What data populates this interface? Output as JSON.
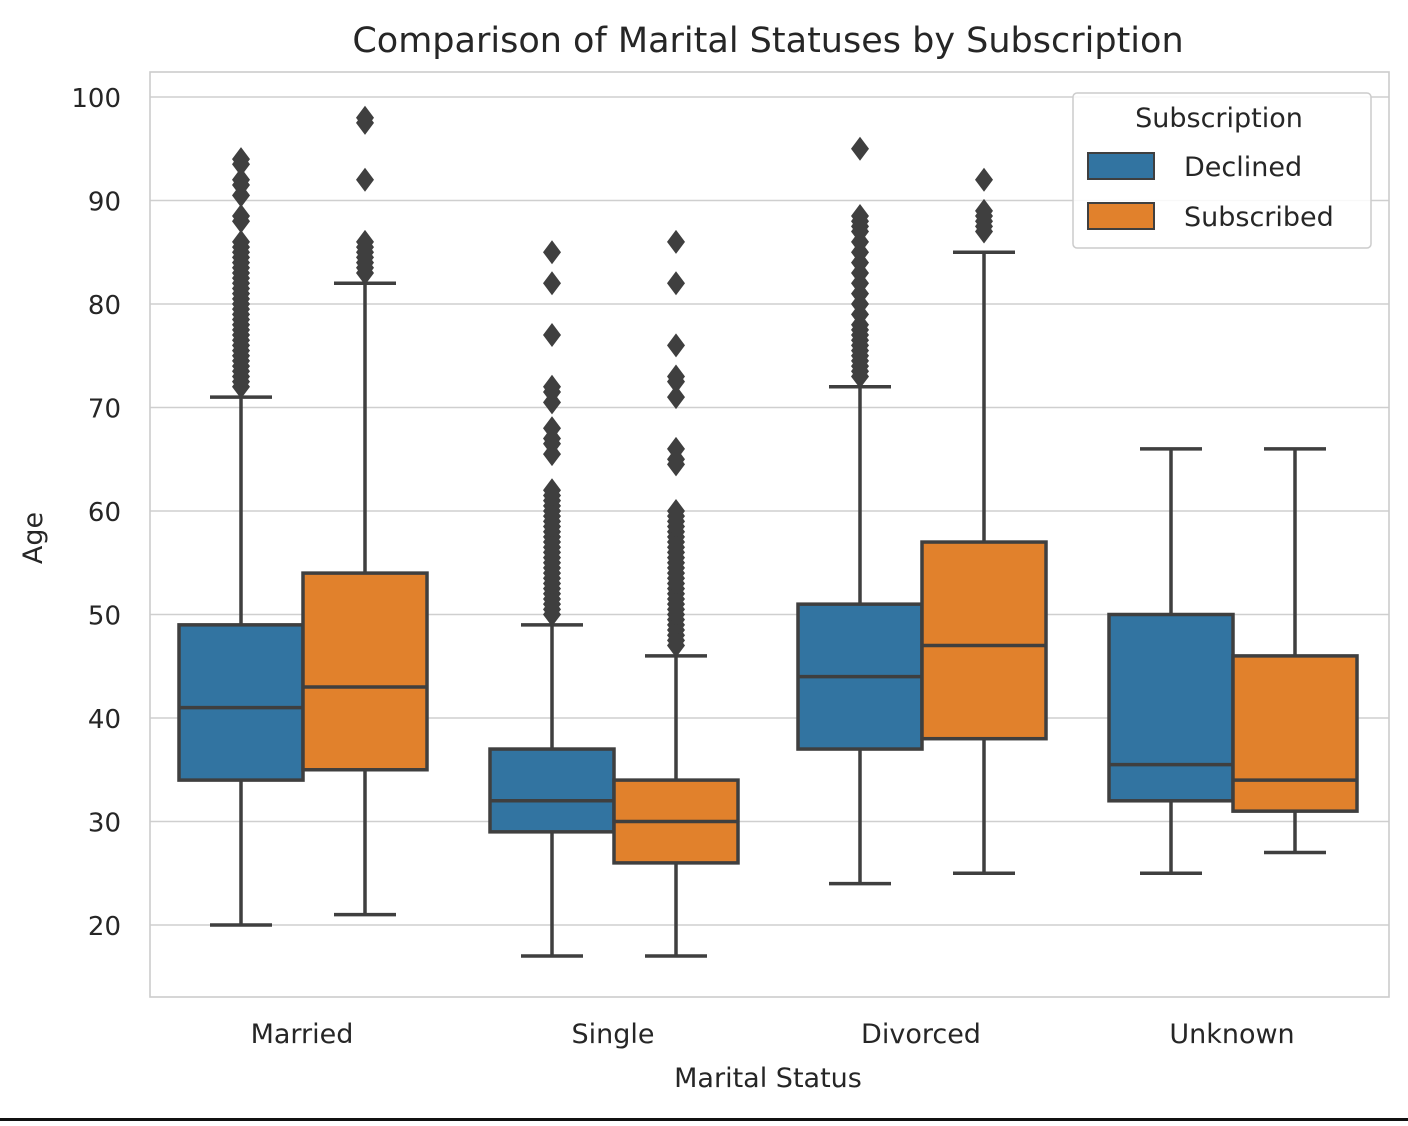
{
  "chart_data": {
    "type": "box",
    "title": "Comparison of Marital Statuses by Subscription",
    "xlabel": "Marital Status",
    "ylabel": "Age",
    "categories": [
      "Married",
      "Single",
      "Divorced",
      "Unknown"
    ],
    "ylim": [
      12.5,
      102.3
    ],
    "yticks": [
      20,
      30,
      40,
      50,
      60,
      70,
      80,
      90,
      100
    ],
    "grid": true,
    "legend": {
      "title": "Subscription",
      "placement": "top-right"
    },
    "series": [
      {
        "name": "Declined",
        "color": "#3274a1",
        "boxes": [
          {
            "category": "Married",
            "whislo": 20,
            "q1": 34,
            "med": 41,
            "q3": 49,
            "whishi": 71,
            "fliers": [
              72,
              72.5,
              73,
              73.5,
              74,
              74.5,
              75,
              75.5,
              76,
              76.5,
              77,
              77.5,
              78,
              78.5,
              79,
              79.5,
              80,
              80.5,
              81,
              81.5,
              82,
              82.5,
              83,
              83.5,
              84,
              84.5,
              85,
              85.5,
              86,
              88,
              88.5,
              90.5,
              91.5,
              92,
              93.5,
              94
            ]
          },
          {
            "category": "Single",
            "whislo": 17,
            "q1": 29,
            "med": 32,
            "q3": 37,
            "whishi": 49,
            "fliers": [
              50,
              50.5,
              51,
              51.5,
              52,
              52.5,
              53,
              53.5,
              54,
              54.5,
              55,
              55.5,
              56,
              56.5,
              57,
              57.5,
              58,
              58.5,
              59,
              59.5,
              60,
              60.5,
              61,
              61.5,
              62,
              65.5,
              66.5,
              67,
              68,
              70.5,
              71.5,
              72,
              77,
              82,
              85
            ]
          },
          {
            "category": "Divorced",
            "whislo": 24,
            "q1": 37,
            "med": 44,
            "q3": 51,
            "whishi": 72,
            "fliers": [
              73,
              73.5,
              74,
              74.5,
              75,
              75.5,
              76,
              76.5,
              77,
              77.5,
              78,
              79,
              80,
              81,
              82,
              83,
              84,
              85,
              86,
              87,
              87.5,
              88,
              88.5,
              95
            ]
          },
          {
            "category": "Unknown",
            "whislo": 25,
            "q1": 32,
            "med": 35.5,
            "q3": 50,
            "whishi": 66,
            "fliers": []
          }
        ]
      },
      {
        "name": "Subscribed",
        "color": "#e1812c",
        "boxes": [
          {
            "category": "Married",
            "whislo": 21,
            "q1": 35,
            "med": 43,
            "q3": 54,
            "whishi": 82,
            "fliers": [
              83,
              83.5,
              84,
              84.5,
              85,
              85.5,
              86,
              92,
              97.5,
              98
            ]
          },
          {
            "category": "Single",
            "whislo": 17,
            "q1": 26,
            "med": 30,
            "q3": 34,
            "whishi": 46,
            "fliers": [
              47,
              47.5,
              48,
              48.5,
              49,
              49.5,
              50,
              50.5,
              51,
              51.5,
              52,
              52.5,
              53,
              53.5,
              54,
              54.5,
              55,
              55.5,
              56,
              56.5,
              57,
              57.5,
              58,
              58.5,
              59,
              59.5,
              60,
              64.5,
              65,
              66,
              71,
              72.5,
              73,
              76,
              82,
              86
            ]
          },
          {
            "category": "Divorced",
            "whislo": 25,
            "q1": 38,
            "med": 47,
            "q3": 57,
            "whishi": 85,
            "fliers": [
              87,
              87.5,
              88,
              88.5,
              89,
              92
            ]
          },
          {
            "category": "Unknown",
            "whislo": 27,
            "q1": 31,
            "med": 34,
            "q3": 46,
            "whishi": 66,
            "fliers": []
          }
        ]
      }
    ]
  }
}
